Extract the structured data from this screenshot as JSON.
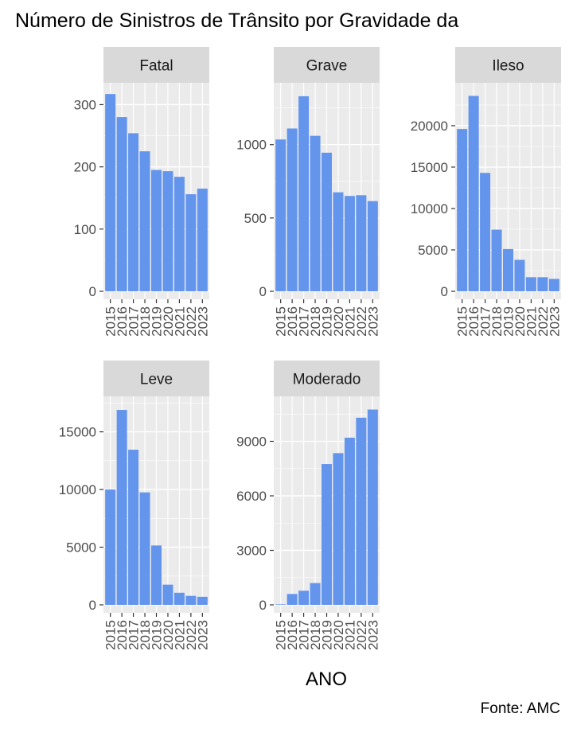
{
  "title": "Número de Sinistros de Trânsito por Gravidade da",
  "xlabel": "ANO",
  "caption": "Fonte: AMC",
  "colors": {
    "bar": "#6495ED",
    "panel_bg": "#EBEBEB",
    "strip_bg": "#D9D9D9",
    "grid": "#FFFFFF",
    "text": "#4D4D4D"
  },
  "chart_data": {
    "type": "bar",
    "faceted": true,
    "facet_var_labels": [
      "Fatal",
      "Grave",
      "Ileso",
      "Leve",
      "Moderado"
    ],
    "categories": [
      "2015",
      "2016",
      "2017",
      "2018",
      "2019",
      "2020",
      "2021",
      "2022",
      "2023"
    ],
    "x_tick_labels": [
      "2015",
      "2016",
      "2017",
      "2018",
      "2019",
      "2020",
      "2021",
      "2022",
      "2023"
    ],
    "grid": true,
    "panels": [
      {
        "name": "Fatal",
        "values": [
          317,
          280,
          254,
          225,
          195,
          193,
          184,
          156,
          165
        ],
        "ylim": [
          0,
          330
        ],
        "yticks": [
          0,
          100,
          200,
          300
        ],
        "ytick_labels": [
          "0",
          "100",
          "200",
          "300"
        ]
      },
      {
        "name": "Grave",
        "values": [
          1035,
          1110,
          1330,
          1060,
          945,
          675,
          650,
          655,
          615
        ],
        "ylim": [
          0,
          1400
        ],
        "yticks": [
          0,
          500,
          1000
        ],
        "ytick_labels": [
          "0",
          "500",
          "1000"
        ]
      },
      {
        "name": "Ileso",
        "values": [
          19600,
          23600,
          14300,
          7450,
          5100,
          3800,
          1700,
          1700,
          1500
        ],
        "ylim": [
          0,
          24800
        ],
        "yticks": [
          0,
          5000,
          10000,
          15000,
          20000
        ],
        "ytick_labels": [
          "0",
          "5000",
          "10000",
          "15000",
          "20000"
        ]
      },
      {
        "name": "Leve",
        "values": [
          10000,
          16900,
          13450,
          9750,
          5150,
          1750,
          1050,
          780,
          700
        ],
        "ylim": [
          0,
          17800
        ],
        "yticks": [
          0,
          5000,
          10000,
          15000
        ],
        "ytick_labels": [
          "0",
          "5000",
          "10000",
          "15000"
        ]
      },
      {
        "name": "Moderado",
        "values": [
          30,
          600,
          780,
          1200,
          7750,
          8350,
          9200,
          10300,
          10750
        ],
        "ylim": [
          0,
          11300
        ],
        "yticks": [
          0,
          3000,
          6000,
          9000
        ],
        "ytick_labels": [
          "0",
          "3000",
          "6000",
          "9000"
        ]
      }
    ]
  }
}
